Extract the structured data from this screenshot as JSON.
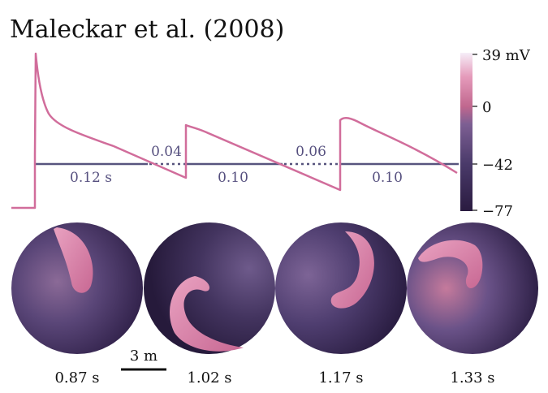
{
  "title": "Maleckar et al. (2008)",
  "colors": {
    "trace": "#d16d9b",
    "threshold_line": "#57547e",
    "label_text": "#56507f",
    "cmap": [
      "#2a1b40",
      "#4a3a6a",
      "#6f5a8f",
      "#c0678e",
      "#e08fb0",
      "#f5eaf6"
    ]
  },
  "chart_data": {
    "type": "line",
    "title": "Maleckar et al. (2008)",
    "trace": {
      "unit": "mV",
      "resting_mV": -77,
      "plateau_mV": -42,
      "beats": [
        {
          "upstroke_mV": 39,
          "end_mV": -42
        },
        {
          "upstroke_mV": 0,
          "end_mV": -56
        },
        {
          "upstroke_mV": -10,
          "end_mV": -52
        },
        {
          "upstroke_mV": -42,
          "end_mV": -42
        }
      ]
    },
    "apd_labels": [
      "0.12 s",
      "0.10",
      "0.10"
    ],
    "di_labels": [
      "0.04",
      "0.06"
    ],
    "colorbar": {
      "min": -77,
      "max": 39,
      "ticks": [
        {
          "value": 39,
          "label": "39 mV"
        },
        {
          "value": 0,
          "label": "0"
        },
        {
          "value": -42,
          "label": "−42"
        },
        {
          "value": -77,
          "label": "−77"
        }
      ]
    },
    "snapshots": [
      {
        "time": "0.87 s"
      },
      {
        "time": "1.02 s"
      },
      {
        "time": "1.17 s"
      },
      {
        "time": "1.33 s"
      }
    ],
    "scale_bar": "3 m"
  }
}
